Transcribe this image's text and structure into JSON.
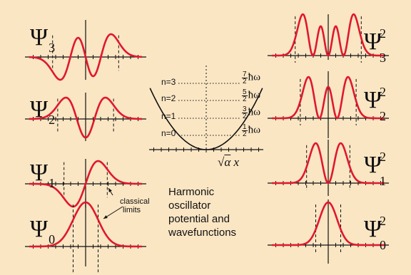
{
  "title": "Harmonic oscillator potential and wavefunctions",
  "caption_lines": [
    "Harmonic oscillator",
    "potential and",
    "wavefunctions"
  ],
  "annotation_lines": [
    "classical",
    "limits"
  ],
  "axis_label": {
    "prefix": "√",
    "alpha": "α",
    "x": "x"
  },
  "psi_symbol": "Ψ",
  "hbar_omega": "ħω",
  "square_power": "2",
  "wavefunctions": [
    {
      "n": "0",
      "label_sub": "0"
    },
    {
      "n": "1",
      "label_sub": "1"
    },
    {
      "n": "2",
      "label_sub": "2"
    },
    {
      "n": "3",
      "label_sub": "3"
    }
  ],
  "levels": [
    {
      "label": "n=0",
      "num": "1",
      "den": "2"
    },
    {
      "label": "n=1",
      "num": "3",
      "den": "2"
    },
    {
      "label": "n=2",
      "num": "5",
      "den": "2"
    },
    {
      "label": "n=3",
      "num": "7",
      "den": "2"
    }
  ],
  "colors": {
    "background": "#fbe6c4",
    "curve": "#e0182d",
    "axis": "#111111",
    "potential": "#111111"
  }
}
